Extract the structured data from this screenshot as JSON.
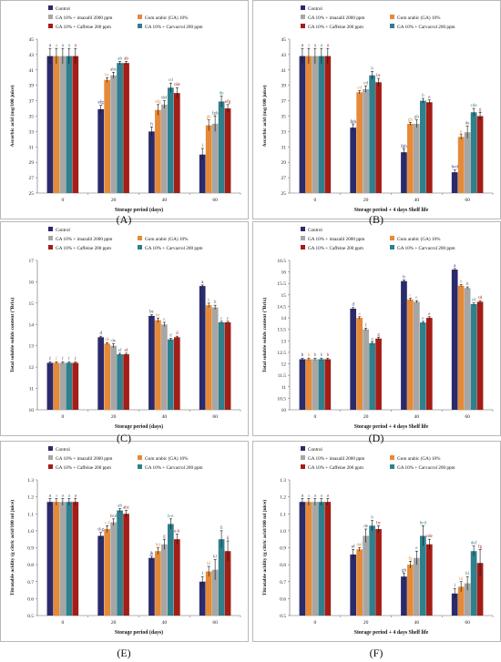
{
  "colors": {
    "Control": "#2b2a6b",
    "Gum arabic (GA) 10%": "#e58a38",
    "GA 10% + imazalil 2000 ppm": "#a6a6a6",
    "GA 10% + Carvacrol 200 ppm": "#2f7f8c",
    "GA 10% + Caffeine 200 ppm": "#a31e16"
  },
  "panel_labels": [
    "(A)",
    "(B)",
    "(C)",
    "(D)",
    "(E)",
    "(F)"
  ],
  "chart_data": [
    {
      "id": "A",
      "type": "bar",
      "legend": [
        "Control",
        "Gum arabic (GA) 10%",
        "GA 10% + imazalil 2000 ppm",
        "GA 10% + Carvacrol 200 ppm",
        "GA 10% + Caffeine 200 ppm"
      ],
      "categories": [
        "0",
        "20",
        "40",
        "60"
      ],
      "xlabel": "Storage period (days)",
      "ylabel": "Ascorbic acid (mg/100 juice)",
      "ylim": [
        25,
        45
      ],
      "yticks": [
        25,
        27,
        29,
        31,
        33,
        35,
        37,
        39,
        41,
        43,
        45
      ],
      "series": [
        {
          "name": "Control",
          "values": [
            42.8,
            35.9,
            33.0,
            30.0
          ],
          "err": [
            1.0,
            0.5,
            0.6,
            0.8
          ],
          "labels": [
            "a",
            "efg",
            "h",
            "i"
          ]
        },
        {
          "name": "Gum arabic (GA) 10%",
          "values": [
            42.8,
            39.7,
            35.8,
            33.8
          ],
          "err": [
            1.0,
            0.3,
            0.7,
            0.7
          ],
          "labels": [
            "a",
            "bc",
            "efg",
            "gh"
          ]
        },
        {
          "name": "GA 10% + imazalil 2000 ppm",
          "values": [
            42.8,
            40.3,
            36.5,
            34.0
          ],
          "err": [
            1.0,
            0.4,
            0.5,
            1.0
          ],
          "labels": [
            "a",
            "abc",
            "def",
            "fgh"
          ]
        },
        {
          "name": "GA 10% + Carvacrol 200 ppm",
          "values": [
            42.8,
            41.9,
            38.7,
            36.9
          ],
          "err": [
            1.0,
            0.2,
            0.6,
            0.7
          ],
          "labels": [
            "a",
            "ab",
            "cd",
            "de"
          ]
        },
        {
          "name": "GA 10% + Caffeine 200 ppm",
          "values": [
            42.8,
            41.9,
            38.0,
            36.0
          ],
          "err": [
            1.0,
            0.2,
            0.7,
            0.5
          ],
          "labels": [
            "a",
            "ab",
            "cde",
            "efg"
          ]
        }
      ]
    },
    {
      "id": "B",
      "type": "bar",
      "legend": [
        "Control",
        "Gum arabic (GA) 10%",
        "GA 10% + imazalil 2000 ppm",
        "GA 10% + Carvacrol 200 ppm",
        "GA 10% + Caffeine 200 ppm"
      ],
      "categories": [
        "0",
        "20",
        "40",
        "60"
      ],
      "xlabel": "Storage period + 4 days Shelf life",
      "ylabel": "Ascorbic acid (mg/100 juice)",
      "ylim": [
        25,
        45
      ],
      "yticks": [
        25,
        27,
        29,
        31,
        33,
        35,
        37,
        39,
        41,
        43,
        45
      ],
      "series": [
        {
          "name": "Control",
          "values": [
            42.8,
            33.5,
            30.3,
            27.7
          ],
          "err": [
            1.0,
            0.4,
            0.4,
            0.3
          ],
          "labels": [
            "a",
            "fgh",
            "fgh",
            "bcd"
          ]
        },
        {
          "name": "Gum arabic (GA) 10%",
          "values": [
            42.8,
            38.1,
            34.0,
            32.3
          ],
          "err": [
            1.0,
            0.2,
            0.2,
            0.3
          ],
          "labels": [
            "a",
            "cd",
            "gh",
            "g"
          ]
        },
        {
          "name": "GA 10% + imazalil 2000 ppm",
          "values": [
            42.8,
            38.5,
            34.0,
            32.9
          ],
          "err": [
            1.0,
            0.4,
            0.5,
            0.8
          ],
          "labels": [
            "a",
            "cd",
            "gh",
            "de"
          ]
        },
        {
          "name": "GA 10% + Carvacrol 200 ppm",
          "values": [
            42.8,
            40.3,
            37.0,
            35.5
          ],
          "err": [
            1.0,
            0.5,
            0.3,
            0.5
          ],
          "labels": [
            "a",
            "b",
            "b",
            "cde"
          ]
        },
        {
          "name": "GA 10% + Caffeine 200 ppm",
          "values": [
            42.8,
            39.4,
            36.8,
            35.0
          ],
          "err": [
            1.0,
            0.5,
            0.3,
            0.5
          ],
          "labels": [
            "a",
            "bc",
            "e",
            "g"
          ]
        }
      ]
    },
    {
      "id": "C",
      "type": "bar",
      "legend": [
        "Control",
        "Gum arabic (GA) 10%",
        "GA 10% + imazalil 2000 ppm",
        "GA 10% + Carvacrol 200 ppm",
        "GA 10% + Caffeine 200 ppm"
      ],
      "categories": [
        "0",
        "20",
        "40",
        "60"
      ],
      "xlabel": "Storage period (days)",
      "ylabel": "Total soluble solids content (°Brix)",
      "ylim": [
        10,
        17
      ],
      "yticks": [
        10,
        11,
        12,
        13,
        14,
        15,
        16,
        17
      ],
      "series": [
        {
          "name": "Control",
          "values": [
            12.2,
            13.4,
            14.4,
            15.8
          ],
          "err": [
            0.05,
            0.05,
            0.05,
            0.05
          ],
          "labels": [
            "f",
            "d",
            "bc",
            "a"
          ]
        },
        {
          "name": "Gum arabic (GA) 10%",
          "values": [
            12.2,
            13.1,
            14.2,
            14.9
          ],
          "err": [
            0.05,
            0.05,
            0.1,
            0.1
          ],
          "labels": [
            "f",
            "de",
            "bc",
            "b"
          ]
        },
        {
          "name": "GA 10% + imazalil 2000 ppm",
          "values": [
            12.2,
            13.0,
            14.0,
            14.8
          ],
          "err": [
            0.05,
            0.1,
            0.1,
            0.1
          ],
          "labels": [
            "f",
            "de",
            "c",
            "b"
          ]
        },
        {
          "name": "GA 10% + Carvacrol 200 ppm",
          "values": [
            12.2,
            12.6,
            13.3,
            14.1
          ],
          "err": [
            0.05,
            0.05,
            0.05,
            0.05
          ],
          "labels": [
            "f",
            "ef",
            "d",
            "c"
          ]
        },
        {
          "name": "GA 10% + Caffeine 200 ppm",
          "values": [
            12.2,
            12.6,
            13.4,
            14.1
          ],
          "err": [
            0.05,
            0.05,
            0.05,
            0.05
          ],
          "labels": [
            "f",
            "ef",
            "d",
            "c"
          ]
        }
      ]
    },
    {
      "id": "D",
      "type": "bar",
      "legend": [
        "Control",
        "Gum arabic (GA) 10%",
        "GA 10% + imazalil 2000 ppm",
        "GA 10% + Carvacrol 200 ppm",
        "GA 10% + Caffeine 200 ppm"
      ],
      "categories": [
        "0",
        "20",
        "40",
        "60"
      ],
      "xlabel": "Storage period + 4 days Shelf life",
      "ylabel": "Total soluble solids content (°Brix)",
      "ylim": [
        10,
        16.5
      ],
      "yticks": [
        10,
        10.5,
        11,
        11.5,
        12,
        12.5,
        13,
        13.5,
        14,
        14.5,
        15,
        15.5,
        16,
        16.5
      ],
      "series": [
        {
          "name": "Control",
          "values": [
            12.2,
            14.4,
            15.6,
            16.1
          ],
          "err": [
            0.05,
            0.05,
            0.05,
            0.05
          ],
          "labels": [
            "b",
            "d",
            "b",
            "a"
          ]
        },
        {
          "name": "Gum arabic (GA) 10%",
          "values": [
            12.2,
            14.0,
            14.8,
            15.4
          ],
          "err": [
            0.05,
            0.05,
            0.05,
            0.05
          ],
          "labels": [
            "b",
            "e",
            "c",
            "b"
          ]
        },
        {
          "name": "GA 10% + imazalil 2000 ppm",
          "values": [
            12.2,
            13.5,
            14.7,
            15.3
          ],
          "err": [
            0.05,
            0.05,
            0.05,
            0.05
          ],
          "labels": [
            "b",
            "f",
            "c",
            "b"
          ]
        },
        {
          "name": "GA 10% + Carvacrol 200 ppm",
          "values": [
            12.2,
            12.9,
            13.8,
            14.6
          ],
          "err": [
            0.05,
            0.05,
            0.05,
            0.05
          ],
          "labels": [
            "b",
            "g",
            "e",
            "cd"
          ]
        },
        {
          "name": "GA 10% + Caffeine 200 ppm",
          "values": [
            12.2,
            13.1,
            14.0,
            14.7
          ],
          "err": [
            0.05,
            0.05,
            0.05,
            0.05
          ],
          "labels": [
            "b",
            "g",
            "e",
            "cd"
          ]
        }
      ]
    },
    {
      "id": "E",
      "type": "bar",
      "legend": [
        "Control",
        "Gum arabic (GA) 10%",
        "GA 10% + imazalil 2000 ppm",
        "GA 10% + Carvacrol 200 ppm",
        "GA 10% + Caffeine 200 ppm"
      ],
      "categories": [
        "0",
        "20",
        "40",
        "60"
      ],
      "xlabel": "Storage period (days)",
      "ylabel": "Titratable acidity (g citric acid/100 ml juice)",
      "ylim": [
        0.5,
        1.3
      ],
      "yticks": [
        0.5,
        0.6,
        0.7,
        0.8,
        0.9,
        1.0,
        1.1,
        1.2,
        1.3
      ],
      "series": [
        {
          "name": "Control",
          "values": [
            1.17,
            0.97,
            0.84,
            0.7
          ],
          "err": [
            0.02,
            0.02,
            0.01,
            0.03
          ],
          "labels": [
            "a",
            "d-g",
            "jk",
            "l"
          ]
        },
        {
          "name": "Gum arabic (GA) 10%",
          "values": [
            1.17,
            1.01,
            0.88,
            0.76
          ],
          "err": [
            0.02,
            0.02,
            0.02,
            0.03
          ],
          "labels": [
            "a",
            "c-f",
            "hij",
            "kl"
          ]
        },
        {
          "name": "GA 10% + imazalil 2000 ppm",
          "values": [
            1.17,
            1.05,
            0.92,
            0.77
          ],
          "err": [
            0.02,
            0.02,
            0.03,
            0.06
          ],
          "labels": [
            "a",
            "bcd",
            "g",
            "kl"
          ]
        },
        {
          "name": "GA 10% + Carvacrol 200 ppm",
          "values": [
            1.17,
            1.12,
            1.04,
            0.95
          ],
          "err": [
            0.02,
            0.01,
            0.03,
            0.05
          ],
          "labels": [
            "a",
            "ab",
            "b-e",
            "fi"
          ]
        },
        {
          "name": "GA 10% + Caffeine 200 ppm",
          "values": [
            1.17,
            1.1,
            0.95,
            0.88
          ],
          "err": [
            0.02,
            0.02,
            0.03,
            0.06
          ],
          "labels": [
            "a",
            "abc",
            "e-h",
            "ij"
          ]
        }
      ]
    },
    {
      "id": "F",
      "type": "bar",
      "legend": [
        "Control",
        "Gum arabic (GA) 10%",
        "GA 10% + imazalil 2000 ppm",
        "GA 10% + Carvacrol 200 ppm",
        "GA 10% + Caffeine 200 ppm"
      ],
      "categories": [
        "0",
        "20",
        "40",
        "60"
      ],
      "xlabel": "Storage period + 4 days Shelf life",
      "ylabel": "Titratable acidity (g citric acid/100 ml juice)",
      "ylim": [
        0.5,
        1.3
      ],
      "yticks": [
        0.5,
        0.6,
        0.7,
        0.8,
        0.9,
        1.0,
        1.1,
        1.2,
        1.3
      ],
      "series": [
        {
          "name": "Control",
          "values": [
            1.17,
            0.86,
            0.73,
            0.63
          ],
          "err": [
            0.02,
            0.03,
            0.02,
            0.03
          ],
          "labels": [
            "a",
            "ef",
            "gh",
            "i"
          ]
        },
        {
          "name": "Gum arabic (GA) 10%",
          "values": [
            1.17,
            0.89,
            0.8,
            0.67
          ],
          "err": [
            0.02,
            0.01,
            0.02,
            0.03
          ],
          "labels": [
            "a",
            "def",
            "fg",
            "hi"
          ]
        },
        {
          "name": "GA 10% + imazalil 2000 ppm",
          "values": [
            1.17,
            0.97,
            0.84,
            0.69
          ],
          "err": [
            0.02,
            0.04,
            0.04,
            0.04
          ],
          "labels": [
            "a",
            "de",
            "e",
            "hi"
          ]
        },
        {
          "name": "GA 10% + Carvacrol 200 ppm",
          "values": [
            1.17,
            1.03,
            0.97,
            0.88
          ],
          "err": [
            0.02,
            0.03,
            0.06,
            0.03
          ],
          "labels": [
            "a",
            "b",
            "bcd",
            "def"
          ]
        },
        {
          "name": "GA 10% + Caffeine 200 ppm",
          "values": [
            1.17,
            1.01,
            0.92,
            0.81
          ],
          "err": [
            0.02,
            0.02,
            0.03,
            0.08
          ],
          "labels": [
            "a",
            "bc",
            "cde",
            "fg"
          ]
        }
      ]
    }
  ]
}
